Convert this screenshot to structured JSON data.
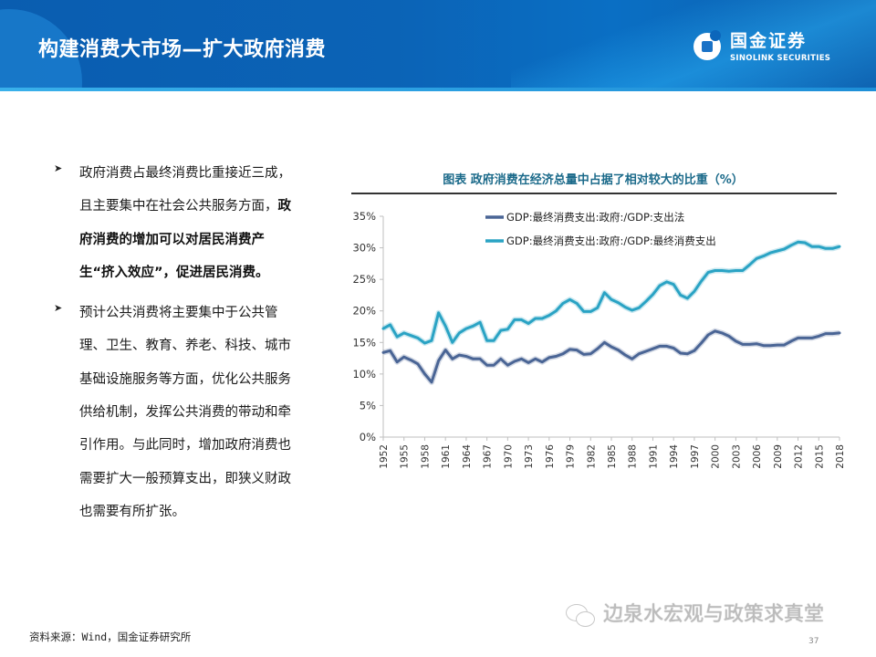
{
  "header": {
    "title": "构建消费大市场—扩大政府消费",
    "logo_cn": "国金证券",
    "logo_en": "SINOLINK SECURITIES"
  },
  "bullets": [
    {
      "text_plain_1": "政府消费占最终消费比重接近三成，且主要集中在社会公共服务方面，",
      "text_bold": "政府消费的增加可以对居民消费产生“挤入效应”，促进居民消费。"
    },
    {
      "text_plain_1": "预计公共消费将主要集中于公共管理、卫生、教育、养老、科技、城市基础设施服务等方面，优化公共服务供给机制，发挥公共消费的带动和牵引作用。与此同时，增加政府消费也需要扩大一般预算支出，即狭义财政也需要有所扩张。",
      "text_bold": ""
    }
  ],
  "footer": {
    "source": "资料来源：Wind，国金证券研究所",
    "watermark": "边泉水宏观与政策求真堂",
    "page_number": "37"
  },
  "chart_data": {
    "type": "line",
    "title": "图表  政府消费在经济总量中占据了相对较大的比重（%）",
    "xlabel": "",
    "ylabel": "",
    "ylim": [
      0,
      35
    ],
    "yticks": [
      "0%",
      "5%",
      "10%",
      "15%",
      "20%",
      "25%",
      "30%",
      "35%"
    ],
    "xticks": [
      "1952",
      "1955",
      "1958",
      "1961",
      "1964",
      "1967",
      "1970",
      "1973",
      "1976",
      "1979",
      "1982",
      "1985",
      "1988",
      "1991",
      "1994",
      "1997",
      "2000",
      "2003",
      "2006",
      "2009",
      "2012",
      "2015",
      "2018"
    ],
    "grid": false,
    "legend_position": "top-center",
    "x": [
      1952,
      1953,
      1954,
      1955,
      1956,
      1957,
      1958,
      1959,
      1960,
      1961,
      1962,
      1963,
      1964,
      1965,
      1966,
      1967,
      1968,
      1969,
      1970,
      1971,
      1972,
      1973,
      1974,
      1975,
      1976,
      1977,
      1978,
      1979,
      1980,
      1981,
      1982,
      1983,
      1984,
      1985,
      1986,
      1987,
      1988,
      1989,
      1990,
      1991,
      1992,
      1993,
      1994,
      1995,
      1996,
      1997,
      1998,
      1999,
      2000,
      2001,
      2002,
      2003,
      2004,
      2005,
      2006,
      2007,
      2008,
      2009,
      2010,
      2011,
      2012,
      2013,
      2014,
      2015,
      2016,
      2017,
      2018
    ],
    "series": [
      {
        "name": "GDP:最终消费支出:政府:/GDP:支出法",
        "color": "#4a6595",
        "values": [
          13.4,
          13.7,
          11.9,
          12.7,
          12.2,
          11.6,
          10.0,
          8.7,
          12.1,
          13.8,
          12.4,
          13.0,
          12.8,
          12.4,
          12.4,
          11.4,
          11.4,
          12.4,
          11.4,
          12.0,
          12.4,
          11.8,
          12.4,
          11.9,
          12.6,
          12.8,
          13.2,
          13.9,
          13.8,
          13.1,
          13.2,
          14.0,
          15.0,
          14.3,
          13.8,
          13.0,
          12.4,
          13.2,
          13.6,
          14.0,
          14.4,
          14.4,
          14.1,
          13.3,
          13.2,
          13.7,
          14.9,
          16.2,
          16.8,
          16.5,
          16.0,
          15.2,
          14.7,
          14.7,
          14.8,
          14.5,
          14.5,
          14.6,
          14.6,
          15.2,
          15.7,
          15.7,
          15.7,
          16.0,
          16.4,
          16.4,
          16.5
        ]
      },
      {
        "name": "GDP:最终消费支出:政府:/GDP:最终消费支出",
        "color": "#2aa3c4",
        "values": [
          17.2,
          17.8,
          15.9,
          16.5,
          16.1,
          15.7,
          14.9,
          15.3,
          19.7,
          17.6,
          15.0,
          16.5,
          17.2,
          17.6,
          18.2,
          15.3,
          15.3,
          16.9,
          17.1,
          18.6,
          18.6,
          18.0,
          18.8,
          18.8,
          19.3,
          20.0,
          21.2,
          21.8,
          21.2,
          19.9,
          19.9,
          20.5,
          22.9,
          21.8,
          21.3,
          20.6,
          20.1,
          20.5,
          21.5,
          22.6,
          24.0,
          24.6,
          24.2,
          22.5,
          22.0,
          23.1,
          24.7,
          26.1,
          26.4,
          26.4,
          26.3,
          26.4,
          26.4,
          27.3,
          28.3,
          28.7,
          29.2,
          29.5,
          29.8,
          30.4,
          30.9,
          30.8,
          30.2,
          30.2,
          29.9,
          29.9,
          30.2
        ]
      }
    ]
  }
}
